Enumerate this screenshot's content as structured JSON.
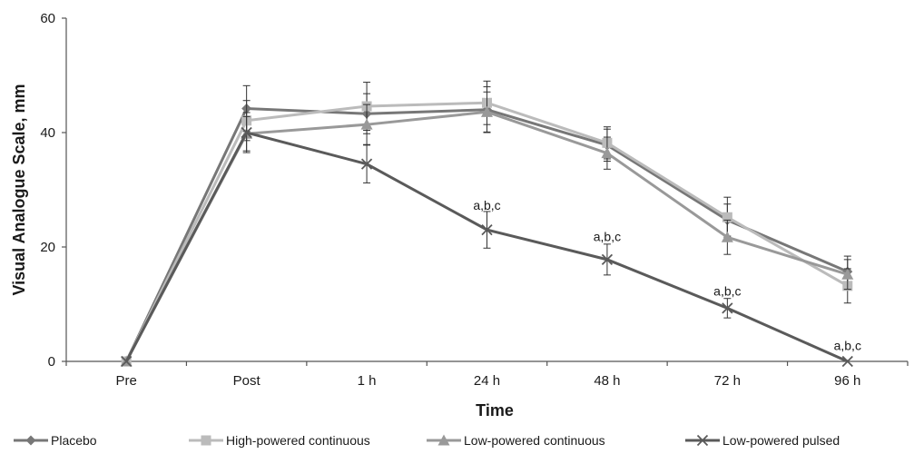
{
  "chart_data": {
    "type": "line",
    "title": "",
    "xlabel": "Time",
    "ylabel": "Visual Analogue Scale, mm",
    "categories": [
      "Pre",
      "Post",
      "1 h",
      "24 h",
      "48 h",
      "72 h",
      "96 h"
    ],
    "ylim": [
      0,
      60
    ],
    "yticks": [
      "0",
      "20",
      "40",
      "60"
    ],
    "grid": false,
    "legend_position": "bottom",
    "series": [
      {
        "name": "Placebo",
        "marker": "diamond",
        "color": "#777777",
        "values": [
          0,
          44.2,
          43.3,
          44.0,
          37.8,
          24.7,
          15.7
        ],
        "errors": [
          0,
          4.0,
          3.5,
          4.0,
          2.8,
          2.8,
          2.7
        ]
      },
      {
        "name": "High-powered continuous",
        "marker": "square",
        "color": "#bbbbbb",
        "values": [
          0,
          42.1,
          44.6,
          45.2,
          38.2,
          25.2,
          13.2
        ],
        "errors": [
          0,
          3.5,
          4.2,
          3.8,
          2.8,
          3.5,
          3.0
        ]
      },
      {
        "name": "Low-powered continuous",
        "marker": "triangle",
        "color": "#999999",
        "values": [
          0,
          39.8,
          41.4,
          43.6,
          36.4,
          21.7,
          15.2
        ],
        "errors": [
          0,
          3.0,
          3.5,
          3.5,
          2.8,
          3.0,
          2.6
        ]
      },
      {
        "name": "Low-powered pulsed",
        "marker": "x",
        "color": "#5a5a5a",
        "values": [
          0,
          40.0,
          34.5,
          23.0,
          17.8,
          9.3,
          0
        ],
        "errors": [
          0,
          3.5,
          3.3,
          3.2,
          2.7,
          1.7,
          0
        ]
      }
    ],
    "annotations": [
      {
        "category": "24 h",
        "text": "a,b,c",
        "y": 26.5
      },
      {
        "category": "48 h",
        "text": "a,b,c",
        "y": 21.0
      },
      {
        "category": "72 h",
        "text": "a,b,c",
        "y": 11.5
      },
      {
        "category": "96 h",
        "text": "a,b,c",
        "y": 2.0
      }
    ]
  }
}
